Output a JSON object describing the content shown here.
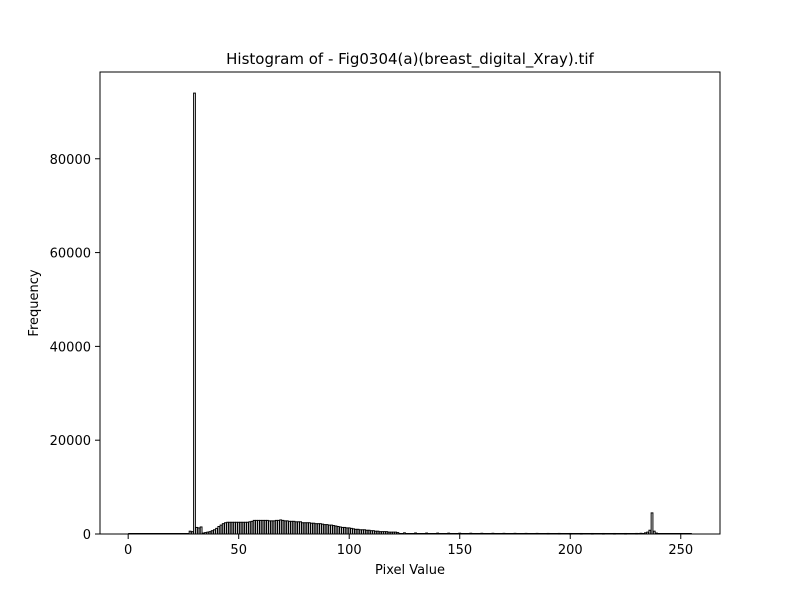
{
  "chart_data": {
    "type": "bar",
    "title": "Histogram of - Fig0304(a)(breast_digital_Xray).tif",
    "xlabel": "Pixel Value",
    "ylabel": "Frequency",
    "xlim": [
      -12.75,
      267.75
    ],
    "ylim": [
      0,
      98500
    ],
    "xticks": [
      0,
      50,
      100,
      150,
      200,
      250
    ],
    "yticks": [
      0,
      20000,
      40000,
      60000,
      80000
    ],
    "grid": false,
    "bar_color": "#000000",
    "bar_edge_color": "#000000",
    "x": [
      28,
      29,
      30,
      31,
      32,
      33,
      34,
      35,
      36,
      37,
      38,
      39,
      40,
      41,
      42,
      43,
      44,
      45,
      46,
      47,
      48,
      49,
      50,
      51,
      52,
      53,
      54,
      55,
      56,
      57,
      58,
      59,
      60,
      61,
      62,
      63,
      64,
      65,
      66,
      67,
      68,
      69,
      70,
      71,
      72,
      73,
      74,
      75,
      76,
      77,
      78,
      79,
      80,
      81,
      82,
      83,
      84,
      85,
      86,
      87,
      88,
      89,
      90,
      91,
      92,
      93,
      94,
      95,
      96,
      97,
      98,
      99,
      100,
      101,
      102,
      103,
      104,
      105,
      106,
      107,
      108,
      109,
      110,
      111,
      112,
      113,
      114,
      115,
      116,
      117,
      118,
      119,
      120,
      121,
      122,
      125,
      130,
      135,
      140,
      145,
      150,
      155,
      160,
      165,
      170,
      175,
      180,
      185,
      190,
      195,
      200,
      205,
      210,
      215,
      220,
      225,
      230,
      232,
      234,
      235,
      236,
      237,
      238,
      239
    ],
    "values": [
      600,
      500,
      94000,
      1400,
      1300,
      1500,
      200,
      300,
      400,
      500,
      700,
      900,
      1200,
      1600,
      1900,
      2200,
      2400,
      2500,
      2500,
      2500,
      2500,
      2500,
      2500,
      2500,
      2500,
      2500,
      2500,
      2600,
      2700,
      2900,
      2900,
      2900,
      2900,
      2900,
      2900,
      2900,
      2800,
      2800,
      2800,
      2900,
      2900,
      3000,
      2900,
      2800,
      2800,
      2700,
      2700,
      2700,
      2600,
      2600,
      2600,
      2400,
      2400,
      2400,
      2400,
      2300,
      2300,
      2200,
      2200,
      2200,
      2100,
      2000,
      2000,
      1900,
      1900,
      1800,
      1700,
      1600,
      1500,
      1400,
      1400,
      1300,
      1300,
      1200,
      1100,
      1000,
      1000,
      900,
      900,
      900,
      800,
      800,
      700,
      700,
      600,
      600,
      500,
      500,
      500,
      500,
      400,
      400,
      400,
      400,
      300,
      250,
      220,
      200,
      190,
      180,
      170,
      160,
      150,
      150,
      140,
      140,
      130,
      130,
      120,
      120,
      110,
      110,
      110,
      110,
      110,
      110,
      120,
      150,
      250,
      400,
      800,
      4500,
      600,
      200
    ]
  }
}
